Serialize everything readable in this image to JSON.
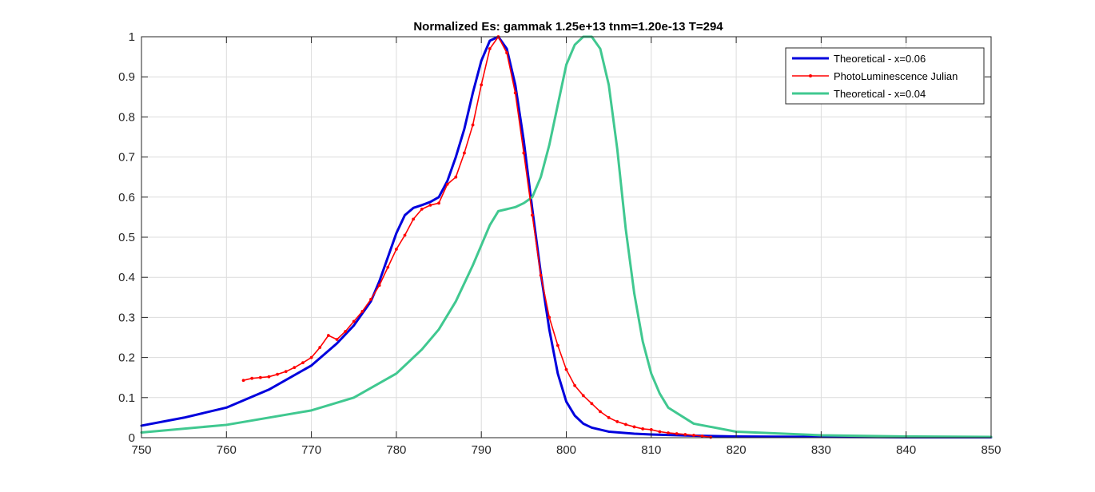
{
  "chart_data": {
    "type": "line",
    "title": "Normalized Es: gammak 1.25e+13  tnm=1.20e-13 T=294",
    "xlabel": "",
    "ylabel": "",
    "xlim": [
      750,
      850
    ],
    "ylim": [
      0,
      1
    ],
    "xticks": [
      750,
      760,
      770,
      780,
      790,
      800,
      810,
      820,
      830,
      840,
      850
    ],
    "yticks": [
      0,
      0.1,
      0.2,
      0.3,
      0.4,
      0.5,
      0.6,
      0.7,
      0.8,
      0.9,
      1
    ],
    "grid": true,
    "legend_position": "top-right",
    "series": [
      {
        "name": "Theoretical - x=0.06",
        "color": "#0000dd",
        "marker": "none",
        "x": [
          750,
          755,
          760,
          765,
          770,
          773,
          775,
          777,
          778,
          779,
          780,
          781,
          782,
          783,
          784,
          785,
          786,
          787,
          788,
          789,
          790,
          791,
          792,
          793,
          794,
          795,
          796,
          797,
          798,
          799,
          800,
          801,
          802,
          803,
          805,
          808,
          810,
          815,
          820,
          830,
          840,
          850
        ],
        "y": [
          0.03,
          0.05,
          0.075,
          0.12,
          0.18,
          0.235,
          0.28,
          0.34,
          0.39,
          0.45,
          0.51,
          0.555,
          0.573,
          0.58,
          0.588,
          0.6,
          0.64,
          0.7,
          0.77,
          0.86,
          0.94,
          0.99,
          1.0,
          0.97,
          0.88,
          0.74,
          0.57,
          0.41,
          0.27,
          0.16,
          0.09,
          0.055,
          0.035,
          0.025,
          0.015,
          0.01,
          0.008,
          0.005,
          0.003,
          0.002,
          0.001,
          0.001
        ]
      },
      {
        "name": "PhotoLuminescence Julian",
        "color": "#ff0000",
        "marker": "dot",
        "x": [
          762,
          763,
          764,
          765,
          766,
          767,
          768,
          769,
          770,
          771,
          772,
          773,
          774,
          775,
          776,
          777,
          778,
          779,
          780,
          781,
          782,
          783,
          784,
          785,
          786,
          787,
          788,
          789,
          790,
          791,
          792,
          793,
          794,
          795,
          796,
          797,
          798,
          799,
          800,
          801,
          802,
          803,
          804,
          805,
          806,
          807,
          808,
          809,
          810,
          811,
          812,
          813,
          814,
          815,
          816,
          817
        ],
        "y": [
          0.143,
          0.148,
          0.15,
          0.152,
          0.158,
          0.165,
          0.175,
          0.187,
          0.2,
          0.225,
          0.255,
          0.245,
          0.265,
          0.29,
          0.315,
          0.345,
          0.38,
          0.425,
          0.47,
          0.505,
          0.545,
          0.57,
          0.58,
          0.585,
          0.632,
          0.65,
          0.71,
          0.78,
          0.88,
          0.97,
          1.0,
          0.96,
          0.86,
          0.71,
          0.555,
          0.405,
          0.3,
          0.23,
          0.17,
          0.13,
          0.105,
          0.085,
          0.065,
          0.05,
          0.04,
          0.033,
          0.027,
          0.022,
          0.02,
          0.015,
          0.012,
          0.01,
          0.008,
          0.006,
          0.004,
          0.001
        ]
      },
      {
        "name": "Theoretical - x=0.04",
        "color": "#40c890",
        "marker": "none",
        "x": [
          750,
          760,
          770,
          775,
          780,
          783,
          785,
          787,
          789,
          790,
          791,
          792,
          793,
          794,
          795,
          796,
          797,
          798,
          799,
          800,
          801,
          802,
          803,
          804,
          805,
          806,
          807,
          808,
          809,
          810,
          811,
          812,
          815,
          820,
          830,
          840,
          850
        ],
        "y": [
          0.013,
          0.032,
          0.068,
          0.1,
          0.16,
          0.22,
          0.27,
          0.34,
          0.43,
          0.48,
          0.53,
          0.565,
          0.57,
          0.575,
          0.585,
          0.6,
          0.65,
          0.73,
          0.83,
          0.93,
          0.98,
          1.0,
          1.0,
          0.97,
          0.88,
          0.72,
          0.52,
          0.36,
          0.24,
          0.16,
          0.11,
          0.075,
          0.035,
          0.015,
          0.006,
          0.003,
          0.002
        ]
      }
    ]
  }
}
